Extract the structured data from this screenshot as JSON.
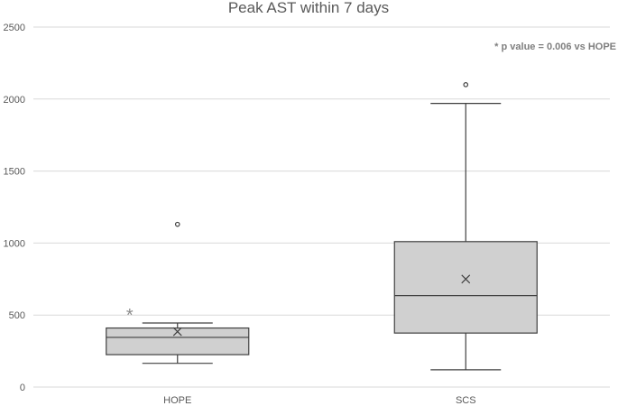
{
  "chart_data": {
    "type": "box",
    "title": "Peak AST within 7 days",
    "xlabel": "",
    "ylabel": "",
    "ylim": [
      0,
      2500
    ],
    "yticks": [
      0,
      500,
      1000,
      1500,
      2000,
      2500
    ],
    "ytick_labels": [
      "0",
      "500",
      "1000",
      "1500",
      "2000",
      "2500"
    ],
    "grid": true,
    "legend": "none",
    "categories": [
      "HOPE",
      "SCS"
    ],
    "boxes": [
      {
        "category": "HOPE",
        "whisker_low": 165,
        "q1": 225,
        "median": 345,
        "q3": 410,
        "whisker_high": 445,
        "mean": 385,
        "outliers": [
          1130
        ],
        "significance_marker": "*"
      },
      {
        "category": "SCS",
        "whisker_low": 120,
        "q1": 375,
        "median": 635,
        "q3": 1010,
        "whisker_high": 1970,
        "mean": 750,
        "outliers": [
          2100
        ],
        "significance_marker": ""
      }
    ],
    "annotations": [
      "* p value = 0.006 vs HOPE"
    ],
    "colors": {
      "box_fill": "#d0d0d0",
      "stroke": "#404040",
      "grid": "#d9d9d9",
      "axis_text": "#595959",
      "annotation_text": "#7f7f7f"
    }
  }
}
